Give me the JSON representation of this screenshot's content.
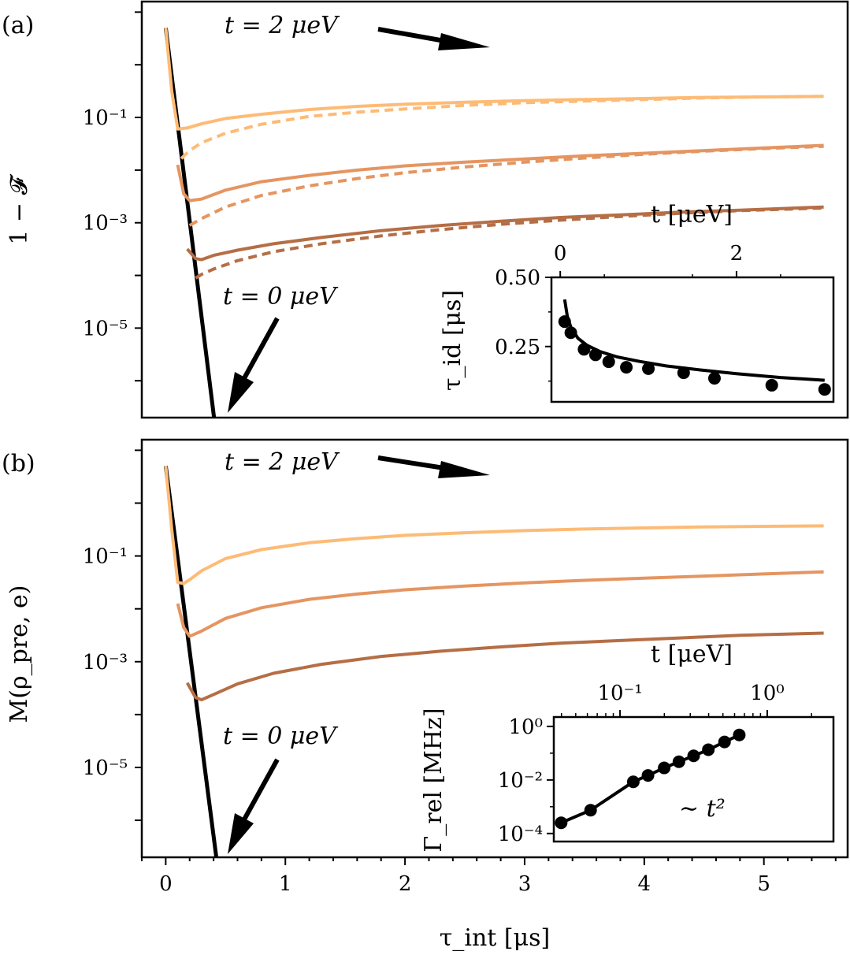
{
  "chart_data": [
    {
      "type": "line",
      "panel_label": "(a)",
      "ylabel": "1 − 𝓕",
      "yscale": "log",
      "xlim": [
        -0.2,
        5.7
      ],
      "ylim_log10": [
        -6.7,
        1.2
      ],
      "ytick_exponents": [
        -1,
        -3,
        -5
      ],
      "ytick_labels": [
        "10⁻¹",
        "10⁻³",
        "10⁻⁵"
      ],
      "annotations": [
        "t = 2 μeV",
        "t = 0 μeV"
      ],
      "series": [
        {
          "role": "t0",
          "color": "#000000",
          "style": "solid",
          "x": [
            0.0,
            0.42
          ],
          "log10_y": [
            0.7,
            -7.0
          ]
        },
        {
          "role": "t2",
          "color": "#fdbb76",
          "style": "solid",
          "x": [
            0.0,
            0.05,
            0.1,
            0.18,
            0.3,
            0.5,
            0.8,
            1.2,
            1.6,
            2.0,
            2.5,
            3.0,
            3.5,
            4.0,
            4.5,
            5.0,
            5.5
          ],
          "log10_y": [
            0.7,
            -0.5,
            -1.22,
            -1.2,
            -1.12,
            -1.02,
            -0.94,
            -0.85,
            -0.79,
            -0.75,
            -0.71,
            -0.68,
            -0.66,
            -0.64,
            -0.62,
            -0.61,
            -0.6
          ]
        },
        {
          "role": "t2",
          "color": "#fdbb76",
          "style": "dashed",
          "x": [
            0.13,
            0.2,
            0.3,
            0.5,
            0.8,
            1.2,
            1.6,
            2.0,
            2.5,
            3.0,
            3.5,
            4.0,
            4.5,
            5.0,
            5.5
          ],
          "log10_y": [
            -1.78,
            -1.63,
            -1.48,
            -1.3,
            -1.13,
            -0.98,
            -0.9,
            -0.84,
            -0.77,
            -0.72,
            -0.69,
            -0.66,
            -0.63,
            -0.61,
            -0.6
          ]
        },
        {
          "role": "mid",
          "color": "#e59561",
          "style": "solid",
          "x": [
            0.1,
            0.15,
            0.2,
            0.3,
            0.5,
            0.8,
            1.2,
            1.6,
            2.0,
            2.5,
            3.0,
            3.5,
            4.0,
            4.5,
            5.0,
            5.5
          ],
          "log10_y": [
            -1.9,
            -2.45,
            -2.58,
            -2.55,
            -2.38,
            -2.22,
            -2.1,
            -2.0,
            -1.92,
            -1.85,
            -1.79,
            -1.73,
            -1.68,
            -1.63,
            -1.58,
            -1.53
          ]
        },
        {
          "role": "mid",
          "color": "#e59561",
          "style": "dashed",
          "x": [
            0.2,
            0.3,
            0.5,
            0.8,
            1.2,
            1.6,
            2.0,
            2.5,
            3.0,
            3.5,
            4.0,
            4.5,
            5.0,
            5.5
          ],
          "log10_y": [
            -3.05,
            -2.92,
            -2.7,
            -2.48,
            -2.3,
            -2.16,
            -2.05,
            -1.94,
            -1.85,
            -1.77,
            -1.7,
            -1.64,
            -1.59,
            -1.55
          ]
        },
        {
          "role": "t_low",
          "color": "#b56e45",
          "style": "solid",
          "x": [
            0.18,
            0.25,
            0.3,
            0.4,
            0.6,
            0.9,
            1.3,
            1.8,
            2.3,
            2.8,
            3.3,
            3.8,
            4.3,
            4.8,
            5.5
          ],
          "log10_y": [
            -3.5,
            -3.68,
            -3.7,
            -3.62,
            -3.52,
            -3.4,
            -3.28,
            -3.15,
            -3.05,
            -2.97,
            -2.9,
            -2.85,
            -2.8,
            -2.76,
            -2.7
          ]
        },
        {
          "role": "t_low",
          "color": "#b56e45",
          "style": "dashed",
          "x": [
            0.25,
            0.3,
            0.4,
            0.6,
            0.9,
            1.3,
            1.8,
            2.3,
            2.8,
            3.3,
            3.8,
            4.3,
            4.8,
            5.5
          ],
          "log10_y": [
            -4.05,
            -3.98,
            -3.88,
            -3.72,
            -3.55,
            -3.4,
            -3.25,
            -3.13,
            -3.03,
            -2.95,
            -2.88,
            -2.82,
            -2.77,
            -2.72
          ]
        }
      ],
      "inset": {
        "type": "scatter+line",
        "xlabel": "t [μeV]",
        "ylabel": "τ_id [μs]",
        "xlim": [
          -0.1,
          3.1
        ],
        "ylim": [
          0.05,
          0.5
        ],
        "xticks": [
          0,
          2
        ],
        "yticks": [
          0.25,
          0.5
        ],
        "ytick_labels": [
          "0.25",
          "0.50"
        ],
        "points_x": [
          0.05,
          0.12,
          0.27,
          0.4,
          0.55,
          0.75,
          1.0,
          1.4,
          1.75,
          2.4,
          3.0
        ],
        "points_y": [
          0.34,
          0.3,
          0.24,
          0.22,
          0.195,
          0.175,
          0.17,
          0.155,
          0.135,
          0.11,
          0.095
        ],
        "fit_x": [
          0.05,
          0.08,
          0.12,
          0.2,
          0.3,
          0.45,
          0.65,
          0.9,
          1.2,
          1.6,
          2.0,
          2.5,
          3.0
        ],
        "fit_y": [
          0.42,
          0.36,
          0.32,
          0.28,
          0.255,
          0.232,
          0.212,
          0.196,
          0.18,
          0.165,
          0.152,
          0.138,
          0.128
        ]
      }
    },
    {
      "type": "line",
      "panel_label": "(b)",
      "ylabel": "M(ρ_pre, e)",
      "xlabel": "τ_int [μs]",
      "yscale": "log",
      "xlim": [
        -0.2,
        5.7
      ],
      "ylim_log10": [
        -6.7,
        1.2
      ],
      "xticks": [
        0,
        1,
        2,
        3,
        4,
        5
      ],
      "ytick_exponents": [
        -1,
        -3,
        -5
      ],
      "ytick_labels": [
        "10⁻¹",
        "10⁻³",
        "10⁻⁵"
      ],
      "annotations": [
        "t = 2 μeV",
        "t = 0 μeV"
      ],
      "series": [
        {
          "role": "t0",
          "color": "#000000",
          "style": "solid",
          "x": [
            0.0,
            0.44
          ],
          "log10_y": [
            0.7,
            -7.0
          ]
        },
        {
          "role": "t2",
          "color": "#fdbb76",
          "style": "solid",
          "x": [
            0.0,
            0.05,
            0.1,
            0.15,
            0.2,
            0.3,
            0.5,
            0.8,
            1.2,
            1.6,
            2.0,
            2.5,
            3.0,
            3.5,
            4.0,
            4.5,
            5.0,
            5.5
          ],
          "log10_y": [
            0.7,
            -0.5,
            -1.5,
            -1.52,
            -1.45,
            -1.28,
            -1.05,
            -0.88,
            -0.75,
            -0.67,
            -0.61,
            -0.56,
            -0.52,
            -0.49,
            -0.47,
            -0.45,
            -0.44,
            -0.43
          ]
        },
        {
          "role": "mid",
          "color": "#e59561",
          "style": "solid",
          "x": [
            0.1,
            0.15,
            0.2,
            0.3,
            0.5,
            0.8,
            1.2,
            1.6,
            2.0,
            2.5,
            3.0,
            3.5,
            4.0,
            4.5,
            5.0,
            5.5
          ],
          "log10_y": [
            -1.9,
            -2.35,
            -2.52,
            -2.42,
            -2.18,
            -1.98,
            -1.82,
            -1.72,
            -1.64,
            -1.57,
            -1.51,
            -1.46,
            -1.42,
            -1.38,
            -1.34,
            -1.3
          ]
        },
        {
          "role": "t_low",
          "color": "#b56e45",
          "style": "solid",
          "x": [
            0.18,
            0.25,
            0.3,
            0.4,
            0.6,
            0.9,
            1.3,
            1.8,
            2.3,
            2.8,
            3.3,
            3.8,
            4.3,
            4.8,
            5.5
          ],
          "log10_y": [
            -3.4,
            -3.68,
            -3.72,
            -3.62,
            -3.42,
            -3.22,
            -3.05,
            -2.9,
            -2.8,
            -2.72,
            -2.65,
            -2.6,
            -2.55,
            -2.5,
            -2.46
          ]
        }
      ],
      "inset": {
        "type": "scatter+line",
        "xscale": "log",
        "yscale": "log",
        "xlabel": "t [μeV]",
        "ylabel": "Γ_rel [MHz]",
        "annotation": "∼ t²",
        "xlim_log10": [
          -1.45,
          0.45
        ],
        "ylim_log10": [
          -4.3,
          0.35
        ],
        "xtick_labels": [
          "10⁻¹",
          "10⁰"
        ],
        "xtick_exponents": [
          -1,
          0
        ],
        "ytick_labels": [
          "10⁰",
          "10⁻²",
          "10⁻⁴"
        ],
        "ytick_exponents": [
          0,
          -2,
          -4
        ],
        "points_log10_x": [
          -1.4,
          -1.2,
          -0.91,
          -0.81,
          -0.7,
          -0.6,
          -0.5,
          -0.4,
          -0.29,
          -0.19
        ],
        "points_log10_y": [
          -3.6,
          -3.13,
          -2.07,
          -1.83,
          -1.55,
          -1.32,
          -1.1,
          -0.87,
          -0.58,
          -0.32
        ]
      }
    }
  ]
}
